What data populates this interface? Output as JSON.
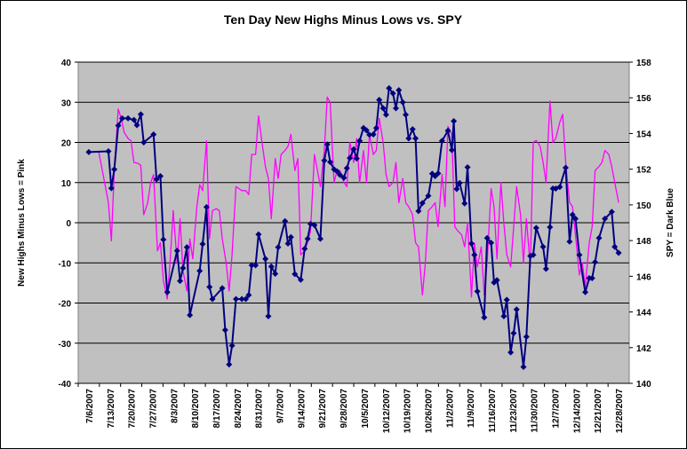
{
  "chart_data": {
    "type": "line",
    "title": "Ten Day New Highs Minus Lows vs. SPY",
    "ylabel_left": "New Highs Minus Lows = Pink",
    "ylabel_right": "SPY = Dark Blue",
    "y_left_ticks": [
      "40",
      "30",
      "20",
      "10",
      "0",
      "-10",
      "-20",
      "-30",
      "-40"
    ],
    "y_right_ticks": [
      "158",
      "156",
      "154",
      "152",
      "150",
      "148",
      "146",
      "144",
      "142",
      "140"
    ],
    "ylim_left": [
      -40,
      40
    ],
    "ylim_right": [
      140,
      158
    ],
    "grid": true,
    "x_ticks": [
      "7/6/2007",
      "7/13/2007",
      "7/20/2007",
      "7/27/2007",
      "8/3/2007",
      "8/10/2007",
      "8/17/2007",
      "8/24/2007",
      "8/31/2007",
      "9/7/2007",
      "9/14/2007",
      "9/21/2007",
      "9/28/2007",
      "10/5/2007",
      "10/12/2007",
      "10/19/2007",
      "10/26/2007",
      "11/2/2007",
      "11/9/2007",
      "11/16/2007",
      "11/23/2007",
      "11/30/2007",
      "12/7/2007",
      "12/14/2007",
      "12/21/2007",
      "12/28/2007"
    ],
    "series": [
      {
        "axis": "left",
        "color": "#000080",
        "marker": "diamond",
        "values": [
          [
            0,
            17.6
          ],
          [
            2,
            17.8
          ],
          [
            2.3,
            8.6
          ],
          [
            2.6,
            13.3
          ],
          [
            3,
            24.2
          ],
          [
            3.4,
            26
          ],
          [
            4,
            26
          ],
          [
            4.6,
            25.6
          ],
          [
            4.9,
            24.3
          ],
          [
            5.3,
            27
          ],
          [
            5.6,
            20
          ],
          [
            6.6,
            22
          ],
          [
            6.9,
            10.8
          ],
          [
            7.3,
            11.6
          ],
          [
            7.6,
            -4.2
          ],
          [
            8,
            -17.3
          ],
          [
            9,
            -7
          ],
          [
            9.3,
            -14.5
          ],
          [
            9.6,
            -11.3
          ],
          [
            10,
            -6.1
          ],
          [
            10.3,
            -23
          ],
          [
            11.3,
            -12
          ],
          [
            11.6,
            -5.3
          ],
          [
            12,
            3.9
          ],
          [
            12.3,
            -16
          ],
          [
            12.6,
            -19
          ],
          [
            13.6,
            -16.3
          ],
          [
            13.9,
            -26.7
          ],
          [
            14.3,
            -35.3
          ],
          [
            14.6,
            -30.6
          ],
          [
            15,
            -19
          ],
          [
            15.6,
            -19
          ],
          [
            16,
            -19
          ],
          [
            16.3,
            -18
          ],
          [
            16.6,
            -10.6
          ],
          [
            17,
            -10.6
          ],
          [
            17.3,
            -2.9
          ],
          [
            18,
            -9
          ],
          [
            18.3,
            -23.3
          ],
          [
            18.6,
            -10.9
          ],
          [
            19,
            -12.7
          ],
          [
            19.3,
            -6.1
          ],
          [
            20,
            0.4
          ],
          [
            20.3,
            -5.2
          ],
          [
            20.6,
            -3.6
          ],
          [
            21,
            -12.8
          ],
          [
            21.6,
            -14.2
          ],
          [
            22,
            -6.5
          ],
          [
            22.3,
            -4
          ],
          [
            22.6,
            -0.3
          ],
          [
            23,
            -0.6
          ],
          [
            23.6,
            -4
          ],
          [
            24,
            15.5
          ],
          [
            24.3,
            19.5
          ],
          [
            24.6,
            15.1
          ],
          [
            25,
            13.3
          ],
          [
            25.3,
            12.8
          ],
          [
            25.6,
            11.9
          ],
          [
            26,
            11.2
          ],
          [
            26.3,
            13.6
          ],
          [
            26.6,
            16.1
          ],
          [
            27,
            18.3
          ],
          [
            27.3,
            16
          ],
          [
            27.6,
            20.4
          ],
          [
            28,
            23.6
          ],
          [
            28.3,
            23
          ],
          [
            28.6,
            21.9
          ],
          [
            29,
            22
          ],
          [
            29.3,
            23.6
          ],
          [
            29.6,
            30.6
          ],
          [
            30,
            28.5
          ],
          [
            30.3,
            26.9
          ],
          [
            30.6,
            33.5
          ],
          [
            31,
            32.2
          ],
          [
            31.3,
            28.5
          ],
          [
            31.6,
            33
          ],
          [
            32,
            30
          ],
          [
            32.3,
            26.9
          ],
          [
            32.6,
            21
          ],
          [
            33,
            23.3
          ],
          [
            33.3,
            21
          ],
          [
            33.6,
            2.9
          ],
          [
            34,
            4.9
          ],
          [
            34.6,
            6.7
          ],
          [
            35,
            12.2
          ],
          [
            35.3,
            11.6
          ],
          [
            35.6,
            12.3
          ],
          [
            36,
            20.4
          ],
          [
            36.6,
            22.9
          ],
          [
            37,
            18.1
          ],
          [
            37.2,
            25.3
          ],
          [
            37.5,
            8.4
          ],
          [
            37.8,
            9.9
          ],
          [
            38.3,
            4.8
          ],
          [
            38.6,
            13.8
          ],
          [
            39,
            -5.2
          ],
          [
            39.3,
            -8
          ],
          [
            39.6,
            -17.1
          ],
          [
            40.3,
            -23.6
          ],
          [
            40.6,
            -3.8
          ],
          [
            41,
            -5
          ],
          [
            41.3,
            -14.9
          ],
          [
            41.6,
            -14.3
          ],
          [
            42.3,
            -23.3
          ],
          [
            42.6,
            -19.2
          ],
          [
            43,
            -32.3
          ],
          [
            43.3,
            -27.5
          ],
          [
            43.6,
            -21.6
          ],
          [
            44.3,
            -35.9
          ],
          [
            44.6,
            -28.4
          ],
          [
            45,
            -8.3
          ],
          [
            45.3,
            -8
          ],
          [
            45.6,
            -1.3
          ],
          [
            46.3,
            -6
          ],
          [
            46.6,
            -11.5
          ],
          [
            47,
            -1.1
          ],
          [
            47.3,
            8.5
          ],
          [
            47.6,
            8.5
          ],
          [
            48,
            8.9
          ],
          [
            48.6,
            13.7
          ],
          [
            49,
            -4.7
          ],
          [
            49.3,
            2
          ],
          [
            49.6,
            1
          ],
          [
            50,
            -8
          ],
          [
            50.6,
            -17.3
          ],
          [
            51,
            -13.8
          ],
          [
            51.3,
            -13.8
          ],
          [
            51.6,
            -9.8
          ],
          [
            52,
            -3.8
          ],
          [
            52.6,
            1
          ],
          [
            53.3,
            2.7
          ],
          [
            53.6,
            -6
          ],
          [
            54,
            -7.5
          ]
        ]
      },
      {
        "axis": "left",
        "color": "#ff00ff",
        "marker": "none",
        "values": [
          [
            0,
            17.5
          ],
          [
            1,
            17.8
          ],
          [
            2,
            5
          ],
          [
            2.3,
            -4.5
          ],
          [
            2.6,
            13
          ],
          [
            3,
            28.3
          ],
          [
            3.3,
            26
          ],
          [
            3.6,
            22.5
          ],
          [
            4,
            21
          ],
          [
            4.3,
            20.4
          ],
          [
            4.6,
            15
          ],
          [
            5,
            14.8
          ],
          [
            5.3,
            14.3
          ],
          [
            5.6,
            2
          ],
          [
            6,
            5
          ],
          [
            6.3,
            10
          ],
          [
            6.6,
            12
          ],
          [
            7,
            -7
          ],
          [
            7.3,
            -5
          ],
          [
            7.6,
            -14.3
          ],
          [
            8,
            -19
          ],
          [
            8.3,
            -9
          ],
          [
            8.6,
            3
          ],
          [
            9,
            -10
          ],
          [
            9.3,
            1
          ],
          [
            9.6,
            -12
          ],
          [
            10,
            -17
          ],
          [
            10.3,
            -4
          ],
          [
            10.6,
            -9
          ],
          [
            11,
            3.8
          ],
          [
            11.3,
            9.5
          ],
          [
            11.6,
            8
          ],
          [
            12,
            20.4
          ],
          [
            12.3,
            -4
          ],
          [
            12.6,
            3
          ],
          [
            13,
            3.5
          ],
          [
            13.3,
            3
          ],
          [
            13.6,
            -4
          ],
          [
            14,
            -10
          ],
          [
            14.3,
            -17
          ],
          [
            14.6,
            -8
          ],
          [
            15,
            9
          ],
          [
            15.3,
            8.5
          ],
          [
            15.6,
            8
          ],
          [
            16,
            8
          ],
          [
            16.3,
            7
          ],
          [
            16.6,
            17
          ],
          [
            17,
            17
          ],
          [
            17.3,
            26.6
          ],
          [
            17.6,
            21
          ],
          [
            18,
            14
          ],
          [
            18.3,
            11
          ],
          [
            18.6,
            1
          ],
          [
            19,
            16
          ],
          [
            19.3,
            11
          ],
          [
            19.6,
            17
          ],
          [
            20,
            18
          ],
          [
            20.3,
            19
          ],
          [
            20.6,
            22
          ],
          [
            21,
            13
          ],
          [
            21.3,
            16
          ],
          [
            21.6,
            -8
          ],
          [
            22,
            -7
          ],
          [
            22.3,
            -5
          ],
          [
            22.6,
            -2
          ],
          [
            23,
            17
          ],
          [
            23.3,
            13
          ],
          [
            23.6,
            9
          ],
          [
            24,
            18
          ],
          [
            24.3,
            31.3
          ],
          [
            24.6,
            30
          ],
          [
            25,
            10
          ],
          [
            25.3,
            13
          ],
          [
            25.6,
            13
          ],
          [
            26,
            10
          ],
          [
            26.3,
            9
          ],
          [
            26.6,
            20
          ],
          [
            27,
            15
          ],
          [
            27.3,
            21
          ],
          [
            27.6,
            10
          ],
          [
            28,
            18
          ],
          [
            28.3,
            10
          ],
          [
            28.6,
            22
          ],
          [
            29,
            17
          ],
          [
            29.3,
            18
          ],
          [
            29.6,
            26
          ],
          [
            30,
            20
          ],
          [
            30.3,
            12
          ],
          [
            30.6,
            9
          ],
          [
            31,
            10
          ],
          [
            31.3,
            15
          ],
          [
            31.6,
            5
          ],
          [
            32,
            11
          ],
          [
            32.3,
            5
          ],
          [
            32.6,
            4
          ],
          [
            33,
            2
          ],
          [
            33.3,
            -5
          ],
          [
            33.6,
            -6
          ],
          [
            34,
            -18
          ],
          [
            34.3,
            -10
          ],
          [
            34.6,
            3
          ],
          [
            35,
            4
          ],
          [
            35.3,
            5
          ],
          [
            35.6,
            -1
          ],
          [
            36,
            12
          ],
          [
            36.3,
            4
          ],
          [
            36.6,
            24
          ],
          [
            37,
            22
          ],
          [
            37.3,
            -1
          ],
          [
            37.6,
            -2
          ],
          [
            38,
            -3
          ],
          [
            38.3,
            -6
          ],
          [
            38.6,
            0
          ],
          [
            39,
            -18.5
          ],
          [
            39.3,
            -5
          ],
          [
            39.6,
            -11
          ],
          [
            40,
            -6
          ],
          [
            40.3,
            -18
          ],
          [
            40.6,
            -10
          ],
          [
            41,
            8.5
          ],
          [
            41.3,
            4
          ],
          [
            41.6,
            -9
          ],
          [
            42,
            10
          ],
          [
            42.3,
            0
          ],
          [
            42.6,
            -8
          ],
          [
            43,
            -11
          ],
          [
            43.3,
            -1
          ],
          [
            43.6,
            9
          ],
          [
            44,
            2
          ],
          [
            44.3,
            -10
          ],
          [
            44.6,
            1
          ],
          [
            45,
            -11
          ],
          [
            45.3,
            20
          ],
          [
            45.6,
            20.5
          ],
          [
            46,
            19
          ],
          [
            46.3,
            15
          ],
          [
            46.6,
            10
          ],
          [
            47,
            30.3
          ],
          [
            47.3,
            20
          ],
          [
            47.6,
            21
          ],
          [
            48,
            25
          ],
          [
            48.3,
            27
          ],
          [
            48.6,
            15
          ],
          [
            49,
            5
          ],
          [
            49.3,
            4
          ],
          [
            49.6,
            -3
          ],
          [
            50,
            -13
          ],
          [
            50.3,
            -10
          ],
          [
            50.6,
            -16
          ],
          [
            51,
            -5
          ],
          [
            51.3,
            -1
          ],
          [
            51.6,
            13
          ],
          [
            52,
            14
          ],
          [
            52.3,
            15
          ],
          [
            52.6,
            18
          ],
          [
            53,
            17
          ],
          [
            53.3,
            14
          ],
          [
            53.6,
            10
          ],
          [
            54,
            5
          ]
        ]
      }
    ]
  }
}
